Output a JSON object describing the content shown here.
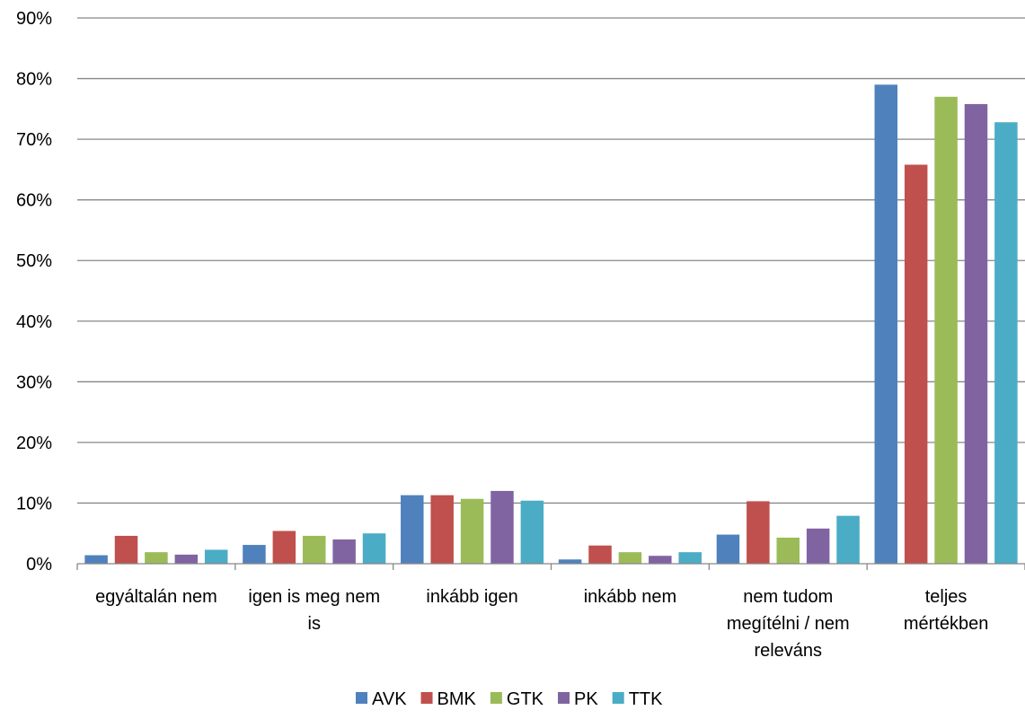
{
  "chart_data": {
    "type": "bar",
    "title": "",
    "xlabel": "",
    "ylabel": "",
    "categories": [
      [
        "egyáltalán nem"
      ],
      [
        "igen is meg nem",
        "is"
      ],
      [
        "inkább igen"
      ],
      [
        "inkább nem"
      ],
      [
        "nem tudom",
        "megítélni / nem",
        "releváns"
      ],
      [
        "teljes",
        "mértékben"
      ]
    ],
    "series": [
      {
        "name": "AVK",
        "color": "#4F81BD",
        "values": [
          1.4,
          3.1,
          11.3,
          0.7,
          4.8,
          79
        ]
      },
      {
        "name": "BMK",
        "color": "#C0504D",
        "values": [
          4.6,
          5.4,
          11.3,
          3.0,
          10.3,
          65.8
        ]
      },
      {
        "name": "GTK",
        "color": "#9BBB59",
        "values": [
          1.9,
          4.6,
          10.7,
          1.9,
          4.3,
          77
        ]
      },
      {
        "name": "PK",
        "color": "#8064A2",
        "values": [
          1.5,
          4.0,
          12.0,
          1.3,
          5.8,
          75.8
        ]
      },
      {
        "name": "TTK",
        "color": "#4BACC6",
        "values": [
          2.3,
          5.0,
          10.4,
          1.9,
          7.9,
          72.8
        ]
      }
    ],
    "ylim": [
      0,
      90
    ],
    "yticks": [
      "0%",
      "10%",
      "20%",
      "30%",
      "40%",
      "50%",
      "60%",
      "70%",
      "80%",
      "90%"
    ],
    "grid": true,
    "legend_position": "bottom"
  }
}
